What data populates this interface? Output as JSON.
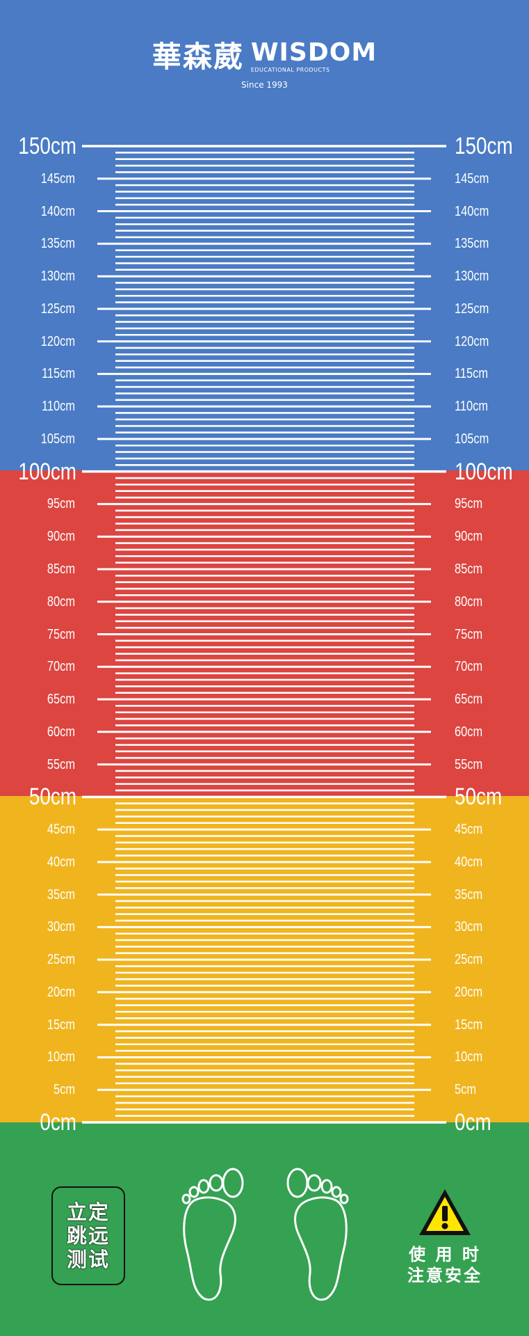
{
  "brand": {
    "name_cn": "華森葳",
    "name_en": "WISDOM",
    "tagline": "EDUCATIONAL PRODUCTS",
    "since": "Since 1993"
  },
  "scale": {
    "unit": "cm",
    "max": 150,
    "min": 0,
    "major_step": 50,
    "label_step": 5,
    "minor_tick_step": 1,
    "labels": [
      "150cm",
      "145cm",
      "140cm",
      "135cm",
      "130cm",
      "125cm",
      "120cm",
      "115cm",
      "110cm",
      "105cm",
      "100cm",
      "95cm",
      "90cm",
      "85cm",
      "80cm",
      "75cm",
      "70cm",
      "65cm",
      "60cm",
      "55cm",
      "50cm",
      "45cm",
      "40cm",
      "35cm",
      "30cm",
      "25cm",
      "20cm",
      "15cm",
      "10cm",
      "5cm",
      "0cm"
    ],
    "zones": [
      {
        "range": [
          100,
          150
        ],
        "color": "#4a7bc4"
      },
      {
        "range": [
          50,
          100
        ],
        "color": "#dc4540"
      },
      {
        "range": [
          0,
          50
        ],
        "color": "#f0b41e"
      }
    ]
  },
  "start_area": {
    "color": "#35a152",
    "title_lines": [
      "立定",
      "跳远",
      "测试"
    ],
    "warning_icon": "warning-triangle-icon",
    "warning_lines": [
      "使 用 时",
      "注意安全"
    ]
  }
}
